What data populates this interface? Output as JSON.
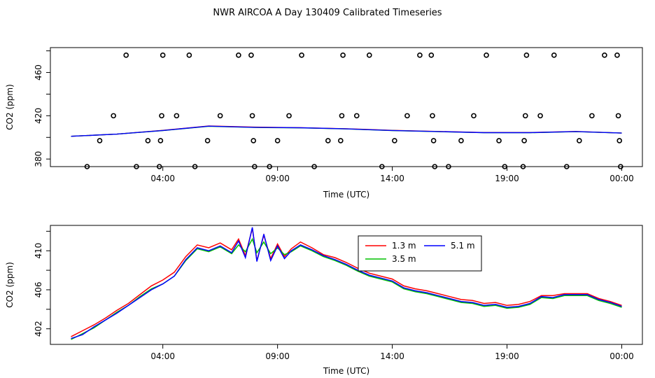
{
  "title": "NWR AIRCOA A  Day 130409  Calibrated Timeseries",
  "chart_data": [
    {
      "type": "scatter",
      "xlabel": "Time (UTC)",
      "ylabel": "CO2 (ppm)",
      "x_ticks": [
        {
          "label": "04:00",
          "t": 4
        },
        {
          "label": "09:00",
          "t": 9
        },
        {
          "label": "14:00",
          "t": 14
        },
        {
          "label": "19:00",
          "t": 19
        },
        {
          "label": "00:00",
          "t": 24
        }
      ],
      "y_ticks": [
        380,
        420,
        460
      ],
      "xlim_hours": [
        -0.9,
        24.9
      ],
      "ylim": [
        373,
        483
      ],
      "points": [
        [
          0.7,
          373
        ],
        [
          1.25,
          397
        ],
        [
          1.85,
          420
        ],
        [
          2.4,
          476
        ],
        [
          2.85,
          373
        ],
        [
          3.35,
          397
        ],
        [
          3.85,
          373
        ],
        [
          3.9,
          397
        ],
        [
          3.95,
          420
        ],
        [
          4.0,
          476
        ],
        [
          4.6,
          420
        ],
        [
          5.15,
          476
        ],
        [
          5.4,
          373
        ],
        [
          5.95,
          397
        ],
        [
          6.5,
          420
        ],
        [
          7.3,
          476
        ],
        [
          7.85,
          476
        ],
        [
          7.9,
          420
        ],
        [
          7.95,
          397
        ],
        [
          8.0,
          373
        ],
        [
          8.65,
          373
        ],
        [
          9.0,
          397
        ],
        [
          9.5,
          420
        ],
        [
          10.05,
          476
        ],
        [
          10.6,
          373
        ],
        [
          11.2,
          397
        ],
        [
          11.75,
          397
        ],
        [
          11.8,
          420
        ],
        [
          11.85,
          476
        ],
        [
          12.45,
          420
        ],
        [
          13.0,
          476
        ],
        [
          13.55,
          373
        ],
        [
          14.1,
          397
        ],
        [
          14.65,
          420
        ],
        [
          15.2,
          476
        ],
        [
          15.7,
          476
        ],
        [
          15.75,
          420
        ],
        [
          15.8,
          397
        ],
        [
          15.85,
          373
        ],
        [
          16.45,
          373
        ],
        [
          17.0,
          397
        ],
        [
          17.55,
          420
        ],
        [
          18.1,
          476
        ],
        [
          18.65,
          397
        ],
        [
          18.9,
          373
        ],
        [
          19.7,
          373
        ],
        [
          19.75,
          397
        ],
        [
          19.8,
          420
        ],
        [
          19.85,
          476
        ],
        [
          20.45,
          420
        ],
        [
          21.05,
          476
        ],
        [
          21.6,
          373
        ],
        [
          22.15,
          397
        ],
        [
          22.7,
          420
        ],
        [
          23.25,
          476
        ],
        [
          23.8,
          476
        ],
        [
          23.85,
          420
        ],
        [
          23.9,
          397
        ],
        [
          23.95,
          373
        ]
      ],
      "series": [
        {
          "color": "#ff0000",
          "values_at": [
            [
              0,
              401
            ],
            [
              2,
              403
            ],
            [
              4,
              406.5
            ],
            [
              6,
              410.5
            ],
            [
              8,
              409.5
            ],
            [
              10,
              409
            ],
            [
              12,
              408
            ],
            [
              14,
              406.5
            ],
            [
              16,
              405.5
            ],
            [
              18,
              404.5
            ],
            [
              20,
              404.5
            ],
            [
              22,
              405.5
            ],
            [
              24,
              404
            ]
          ]
        },
        {
          "color": "#00c000",
          "values_at": [
            [
              0,
              401
            ],
            [
              2,
              403
            ],
            [
              4,
              406.3
            ],
            [
              6,
              410.3
            ],
            [
              8,
              409.2
            ],
            [
              10,
              408.8
            ],
            [
              12,
              407.8
            ],
            [
              14,
              406.3
            ],
            [
              16,
              405.3
            ],
            [
              18,
              404.3
            ],
            [
              20,
              404.3
            ],
            [
              22,
              405.3
            ],
            [
              24,
              404
            ]
          ]
        },
        {
          "color": "#0000ff",
          "values_at": [
            [
              0,
              401
            ],
            [
              2,
              403
            ],
            [
              4,
              406.4
            ],
            [
              6,
              410.4
            ],
            [
              8,
              409.3
            ],
            [
              10,
              408.9
            ],
            [
              12,
              407.9
            ],
            [
              14,
              406.4
            ],
            [
              16,
              405.4
            ],
            [
              18,
              404.4
            ],
            [
              20,
              404.4
            ],
            [
              22,
              405.4
            ],
            [
              24,
              404
            ]
          ]
        }
      ]
    },
    {
      "type": "line",
      "xlabel": "Time (UTC)",
      "ylabel": "CO2 (ppm)",
      "x_ticks": [
        {
          "label": "04:00",
          "t": 4
        },
        {
          "label": "09:00",
          "t": 9
        },
        {
          "label": "14:00",
          "t": 14
        },
        {
          "label": "19:00",
          "t": 19
        },
        {
          "label": "00:00",
          "t": 24
        }
      ],
      "y_ticks": [
        402,
        406,
        410
      ],
      "xlim_hours": [
        -0.9,
        24.9
      ],
      "ylim": [
        400.4,
        412.6
      ],
      "legend": {
        "position": "top-right",
        "entries": [
          {
            "label": "1.3 m",
            "color": "#ff0000"
          },
          {
            "label": "3.5 m",
            "color": "#00c000"
          },
          {
            "label": "5.1 m",
            "color": "#0000ff"
          }
        ]
      },
      "series": [
        {
          "name": "1.3 m",
          "color": "#ff0000",
          "points": [
            [
              0.0,
              401.2
            ],
            [
              0.5,
              401.8
            ],
            [
              1.0,
              402.4
            ],
            [
              1.5,
              403.1
            ],
            [
              2.0,
              403.9
            ],
            [
              2.5,
              404.6
            ],
            [
              3.0,
              405.5
            ],
            [
              3.5,
              406.4
            ],
            [
              4.0,
              407.0
            ],
            [
              4.5,
              407.8
            ],
            [
              5.0,
              409.4
            ],
            [
              5.5,
              410.6
            ],
            [
              6.0,
              410.3
            ],
            [
              6.5,
              410.8
            ],
            [
              7.0,
              410.1
            ],
            [
              7.3,
              411.2
            ],
            [
              7.6,
              409.5
            ],
            [
              7.9,
              412.3
            ],
            [
              8.1,
              409.0
            ],
            [
              8.4,
              411.6
            ],
            [
              8.7,
              409.2
            ],
            [
              9.0,
              410.7
            ],
            [
              9.3,
              409.4
            ],
            [
              9.6,
              410.2
            ],
            [
              10.0,
              410.9
            ],
            [
              10.5,
              410.3
            ],
            [
              11.0,
              409.6
            ],
            [
              11.5,
              409.3
            ],
            [
              12.0,
              408.8
            ],
            [
              12.5,
              408.2
            ],
            [
              13.0,
              407.7
            ],
            [
              13.5,
              407.4
            ],
            [
              14.0,
              407.1
            ],
            [
              14.5,
              406.4
            ],
            [
              15.0,
              406.1
            ],
            [
              15.5,
              405.9
            ],
            [
              16.0,
              405.6
            ],
            [
              16.5,
              405.3
            ],
            [
              17.0,
              405.0
            ],
            [
              17.5,
              404.9
            ],
            [
              18.0,
              404.6
            ],
            [
              18.5,
              404.7
            ],
            [
              19.0,
              404.4
            ],
            [
              19.5,
              404.5
            ],
            [
              20.0,
              404.8
            ],
            [
              20.5,
              405.4
            ],
            [
              21.0,
              405.4
            ],
            [
              21.5,
              405.6
            ],
            [
              22.0,
              405.6
            ],
            [
              22.5,
              405.6
            ],
            [
              23.0,
              405.1
            ],
            [
              23.5,
              404.8
            ],
            [
              24.0,
              404.4
            ]
          ]
        },
        {
          "name": "3.5 m",
          "color": "#00c000",
          "points": [
            [
              0.0,
              400.9
            ],
            [
              0.5,
              401.5
            ],
            [
              1.0,
              402.1
            ],
            [
              1.5,
              402.9
            ],
            [
              2.0,
              403.7
            ],
            [
              2.5,
              404.4
            ],
            [
              3.0,
              405.3
            ],
            [
              3.5,
              406.1
            ],
            [
              4.0,
              406.6
            ],
            [
              4.5,
              407.4
            ],
            [
              5.0,
              409.0
            ],
            [
              5.5,
              410.2
            ],
            [
              6.0,
              409.9
            ],
            [
              6.5,
              410.4
            ],
            [
              7.0,
              409.7
            ],
            [
              7.3,
              410.6
            ],
            [
              7.6,
              409.9
            ],
            [
              7.9,
              411.2
            ],
            [
              8.1,
              409.8
            ],
            [
              8.4,
              410.9
            ],
            [
              8.7,
              409.7
            ],
            [
              9.0,
              410.3
            ],
            [
              9.3,
              409.6
            ],
            [
              9.6,
              409.9
            ],
            [
              10.0,
              410.5
            ],
            [
              10.5,
              410.0
            ],
            [
              11.0,
              409.4
            ],
            [
              11.5,
              409.0
            ],
            [
              12.0,
              408.5
            ],
            [
              12.5,
              407.9
            ],
            [
              13.0,
              407.4
            ],
            [
              13.5,
              407.1
            ],
            [
              14.0,
              406.8
            ],
            [
              14.5,
              406.1
            ],
            [
              15.0,
              405.8
            ],
            [
              15.5,
              405.6
            ],
            [
              16.0,
              405.3
            ],
            [
              16.5,
              405.0
            ],
            [
              17.0,
              404.7
            ],
            [
              17.5,
              404.6
            ],
            [
              18.0,
              404.3
            ],
            [
              18.5,
              404.4
            ],
            [
              19.0,
              404.1
            ],
            [
              19.5,
              404.2
            ],
            [
              20.0,
              404.5
            ],
            [
              20.5,
              405.2
            ],
            [
              21.0,
              405.1
            ],
            [
              21.5,
              405.4
            ],
            [
              22.0,
              405.4
            ],
            [
              22.5,
              405.4
            ],
            [
              23.0,
              404.9
            ],
            [
              23.5,
              404.6
            ],
            [
              24.0,
              404.2
            ]
          ]
        },
        {
          "name": "5.1 m",
          "color": "#0000ff",
          "points": [
            [
              0.0,
              401.0
            ],
            [
              0.5,
              401.4
            ],
            [
              1.0,
              402.2
            ],
            [
              1.5,
              402.9
            ],
            [
              2.0,
              403.6
            ],
            [
              2.5,
              404.4
            ],
            [
              3.0,
              405.2
            ],
            [
              3.5,
              406.0
            ],
            [
              4.0,
              406.6
            ],
            [
              4.5,
              407.4
            ],
            [
              5.0,
              409.1
            ],
            [
              5.5,
              410.3
            ],
            [
              6.0,
              410.0
            ],
            [
              6.5,
              410.5
            ],
            [
              7.0,
              409.8
            ],
            [
              7.3,
              411.0
            ],
            [
              7.6,
              409.3
            ],
            [
              7.9,
              412.4
            ],
            [
              8.1,
              408.9
            ],
            [
              8.4,
              411.7
            ],
            [
              8.7,
              409.0
            ],
            [
              9.0,
              410.5
            ],
            [
              9.3,
              409.2
            ],
            [
              9.6,
              410.0
            ],
            [
              10.0,
              410.6
            ],
            [
              10.5,
              410.1
            ],
            [
              11.0,
              409.5
            ],
            [
              11.5,
              409.1
            ],
            [
              12.0,
              408.6
            ],
            [
              12.5,
              408.0
            ],
            [
              13.0,
              407.5
            ],
            [
              13.5,
              407.2
            ],
            [
              14.0,
              406.9
            ],
            [
              14.5,
              406.2
            ],
            [
              15.0,
              405.9
            ],
            [
              15.5,
              405.7
            ],
            [
              16.0,
              405.4
            ],
            [
              16.5,
              405.1
            ],
            [
              17.0,
              404.8
            ],
            [
              17.5,
              404.7
            ],
            [
              18.0,
              404.4
            ],
            [
              18.5,
              404.5
            ],
            [
              19.0,
              404.2
            ],
            [
              19.5,
              404.3
            ],
            [
              20.0,
              404.6
            ],
            [
              20.5,
              405.3
            ],
            [
              21.0,
              405.2
            ],
            [
              21.5,
              405.5
            ],
            [
              22.0,
              405.5
            ],
            [
              22.5,
              405.5
            ],
            [
              23.0,
              405.0
            ],
            [
              23.5,
              404.7
            ],
            [
              24.0,
              404.3
            ]
          ]
        }
      ]
    }
  ]
}
